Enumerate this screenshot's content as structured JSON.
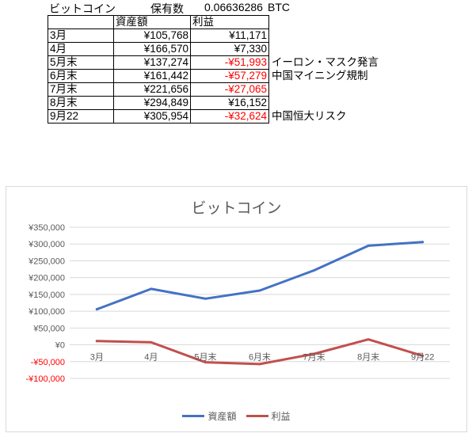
{
  "sheet": {
    "header": {
      "title": "ビットコイン",
      "holding_label": "保有数",
      "holding_value": "0.06636286",
      "unit": "BTC"
    },
    "columns": [
      "",
      "資産額",
      "利益"
    ],
    "rows": [
      {
        "label": "3月",
        "asset": "¥105,768",
        "profit": "¥11,171",
        "note": ""
      },
      {
        "label": "4月",
        "asset": "¥166,570",
        "profit": "¥7,330",
        "note": ""
      },
      {
        "label": "5月末",
        "asset": "¥137,274",
        "profit": "-¥51,993",
        "note": "イーロン・マスク発言"
      },
      {
        "label": "6月末",
        "asset": "¥161,442",
        "profit": "-¥57,279",
        "note": "中国マイニング規制"
      },
      {
        "label": "7月末",
        "asset": "¥221,656",
        "profit": "-¥27,065",
        "note": ""
      },
      {
        "label": "8月末",
        "asset": "¥294,849",
        "profit": "¥16,152",
        "note": ""
      },
      {
        "label": "9月22",
        "asset": "¥305,954",
        "profit": "-¥32,624",
        "note": "中国恒大リスク"
      }
    ]
  },
  "chart_data": {
    "type": "line",
    "title": "ビットコイン",
    "categories": [
      "3月",
      "4月",
      "5月末",
      "6月末",
      "7月末",
      "8月末",
      "9月22"
    ],
    "series": [
      {
        "name": "資産額",
        "color": "#4472c4",
        "values": [
          105768,
          166570,
          137274,
          161442,
          221656,
          294849,
          305954
        ]
      },
      {
        "name": "利益",
        "color": "#c0504d",
        "values": [
          11171,
          7330,
          -51993,
          -57279,
          -27065,
          16152,
          -32624
        ]
      }
    ],
    "ylim": [
      -100000,
      350000
    ],
    "yticks": [
      350000,
      300000,
      250000,
      200000,
      150000,
      100000,
      50000,
      0,
      -50000,
      -100000
    ],
    "ytick_labels": [
      "¥350,000",
      "¥300,000",
      "¥250,000",
      "¥200,000",
      "¥150,000",
      "¥100,000",
      "¥50,000",
      "¥0",
      "-¥50,000",
      "-¥100,000"
    ],
    "negative_tick_color": "#ff0000",
    "grid": true,
    "legend": "bottom"
  }
}
